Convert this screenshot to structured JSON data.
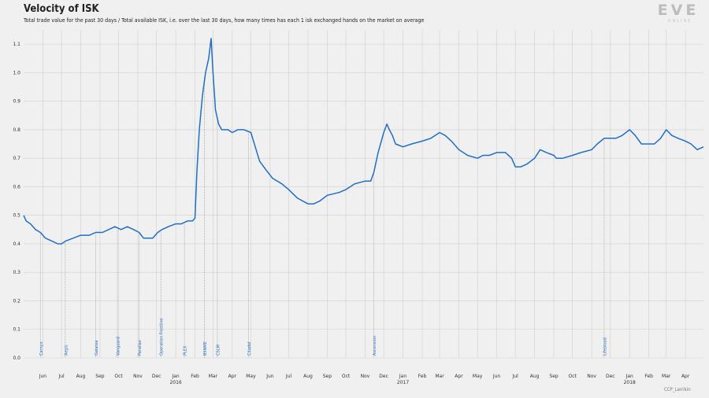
{
  "chart_data": {
    "type": "line",
    "title": "Velocity of ISK",
    "subtitle": "Total trade value for the past 30 days / Total available ISK, i.e. over the last 30 days, how many times has each 1 isk exchanged hands on the market on average",
    "xlabel": "",
    "ylabel": "",
    "ylim": [
      0,
      1.15
    ],
    "y_ticks": [
      "0.0",
      "0.1",
      "0.2",
      "0.3",
      "0.4",
      "0.5",
      "0.6",
      "0.7",
      "0.8",
      "0.9",
      "1.0",
      "1.1"
    ],
    "x_range": [
      "2015-05-01",
      "2018-04-30"
    ],
    "x_ticks": [
      {
        "date": "2015-06-01",
        "label": "Jun"
      },
      {
        "date": "2015-07-01",
        "label": "Jul"
      },
      {
        "date": "2015-08-01",
        "label": "Aug"
      },
      {
        "date": "2015-09-01",
        "label": "Sep"
      },
      {
        "date": "2015-10-01",
        "label": "Oct"
      },
      {
        "date": "2015-11-01",
        "label": "Nov"
      },
      {
        "date": "2015-12-01",
        "label": "Dec"
      },
      {
        "date": "2016-01-01",
        "label": "Jan",
        "year": "2016"
      },
      {
        "date": "2016-02-01",
        "label": "Feb"
      },
      {
        "date": "2016-03-01",
        "label": "Mar"
      },
      {
        "date": "2016-04-01",
        "label": "Apr"
      },
      {
        "date": "2016-05-01",
        "label": "May"
      },
      {
        "date": "2016-06-01",
        "label": "Jun"
      },
      {
        "date": "2016-07-01",
        "label": "Jul"
      },
      {
        "date": "2016-08-01",
        "label": "Aug"
      },
      {
        "date": "2016-09-01",
        "label": "Sep"
      },
      {
        "date": "2016-10-01",
        "label": "Oct"
      },
      {
        "date": "2016-11-01",
        "label": "Nov"
      },
      {
        "date": "2016-12-01",
        "label": "Dec"
      },
      {
        "date": "2017-01-01",
        "label": "Jan",
        "year": "2017"
      },
      {
        "date": "2017-02-01",
        "label": "Feb"
      },
      {
        "date": "2017-03-01",
        "label": "Mar"
      },
      {
        "date": "2017-04-01",
        "label": "Apr"
      },
      {
        "date": "2017-05-01",
        "label": "May"
      },
      {
        "date": "2017-06-01",
        "label": "Jun"
      },
      {
        "date": "2017-07-01",
        "label": "Jul"
      },
      {
        "date": "2017-08-01",
        "label": "Aug"
      },
      {
        "date": "2017-09-01",
        "label": "Sep"
      },
      {
        "date": "2017-10-01",
        "label": "Oct"
      },
      {
        "date": "2017-11-01",
        "label": "Nov"
      },
      {
        "date": "2017-12-01",
        "label": "Dec"
      },
      {
        "date": "2018-01-01",
        "label": "Jan",
        "year": "2018"
      },
      {
        "date": "2018-02-01",
        "label": "Feb"
      },
      {
        "date": "2018-03-01",
        "label": "Mar"
      },
      {
        "date": "2018-04-01",
        "label": "Apr"
      }
    ],
    "grid": true,
    "legend": "none",
    "colors": {
      "line": "#1f6fc4",
      "annotation": "#2a6fc0",
      "grid": "#cfcfcf",
      "marker_line": "#999999"
    },
    "annotations": [
      {
        "date": "2015-05-28",
        "label": "Carnyx"
      },
      {
        "date": "2015-07-07",
        "label": "Aegis"
      },
      {
        "date": "2015-08-25",
        "label": "Galatea"
      },
      {
        "date": "2015-09-29",
        "label": "Vanguard"
      },
      {
        "date": "2015-11-03",
        "label": "Parallax"
      },
      {
        "date": "2015-12-08",
        "label": "Operation Frostline"
      },
      {
        "date": "2016-01-15",
        "label": "PLEX"
      },
      {
        "date": "2016-02-16",
        "label": "BSNME"
      },
      {
        "date": "2016-03-08",
        "label": "CSLM"
      },
      {
        "date": "2016-04-27",
        "label": "Citadel"
      },
      {
        "date": "2016-11-15",
        "label": "Ascension"
      },
      {
        "date": "2017-11-21",
        "label": "Lifeblood"
      }
    ],
    "series": [
      {
        "values": [
          [
            "2015-05-01",
            0.5
          ],
          [
            "2015-05-05",
            0.48
          ],
          [
            "2015-05-12",
            0.47
          ],
          [
            "2015-05-20",
            0.45
          ],
          [
            "2015-05-28",
            0.44
          ],
          [
            "2015-06-05",
            0.42
          ],
          [
            "2015-06-15",
            0.41
          ],
          [
            "2015-06-25",
            0.4
          ],
          [
            "2015-07-01",
            0.4
          ],
          [
            "2015-07-08",
            0.41
          ],
          [
            "2015-07-20",
            0.42
          ],
          [
            "2015-08-01",
            0.43
          ],
          [
            "2015-08-15",
            0.43
          ],
          [
            "2015-08-25",
            0.44
          ],
          [
            "2015-09-05",
            0.44
          ],
          [
            "2015-09-15",
            0.45
          ],
          [
            "2015-09-25",
            0.46
          ],
          [
            "2015-10-05",
            0.45
          ],
          [
            "2015-10-15",
            0.46
          ],
          [
            "2015-10-25",
            0.45
          ],
          [
            "2015-11-03",
            0.44
          ],
          [
            "2015-11-10",
            0.42
          ],
          [
            "2015-11-20",
            0.42
          ],
          [
            "2015-11-25",
            0.42
          ],
          [
            "2015-12-03",
            0.44
          ],
          [
            "2015-12-10",
            0.45
          ],
          [
            "2015-12-20",
            0.46
          ],
          [
            "2016-01-01",
            0.47
          ],
          [
            "2016-01-10",
            0.47
          ],
          [
            "2016-01-20",
            0.48
          ],
          [
            "2016-01-28",
            0.48
          ],
          [
            "2016-02-01",
            0.49
          ],
          [
            "2016-02-04",
            0.65
          ],
          [
            "2016-02-08",
            0.8
          ],
          [
            "2016-02-13",
            0.92
          ],
          [
            "2016-02-18",
            1.0
          ],
          [
            "2016-02-23",
            1.05
          ],
          [
            "2016-02-27",
            1.12
          ],
          [
            "2016-03-01",
            1.0
          ],
          [
            "2016-03-05",
            0.87
          ],
          [
            "2016-03-10",
            0.82
          ],
          [
            "2016-03-15",
            0.8
          ],
          [
            "2016-03-25",
            0.8
          ],
          [
            "2016-04-01",
            0.79
          ],
          [
            "2016-04-10",
            0.8
          ],
          [
            "2016-04-20",
            0.8
          ],
          [
            "2016-05-01",
            0.79
          ],
          [
            "2016-05-08",
            0.74
          ],
          [
            "2016-05-15",
            0.69
          ],
          [
            "2016-05-25",
            0.66
          ],
          [
            "2016-06-05",
            0.63
          ],
          [
            "2016-06-20",
            0.61
          ],
          [
            "2016-07-01",
            0.59
          ],
          [
            "2016-07-15",
            0.56
          ],
          [
            "2016-08-01",
            0.54
          ],
          [
            "2016-08-10",
            0.54
          ],
          [
            "2016-08-20",
            0.55
          ],
          [
            "2016-09-01",
            0.57
          ],
          [
            "2016-09-20",
            0.58
          ],
          [
            "2016-10-01",
            0.59
          ],
          [
            "2016-10-15",
            0.61
          ],
          [
            "2016-11-01",
            0.62
          ],
          [
            "2016-11-10",
            0.62
          ],
          [
            "2016-11-15",
            0.65
          ],
          [
            "2016-11-22",
            0.72
          ],
          [
            "2016-12-01",
            0.79
          ],
          [
            "2016-12-06",
            0.82
          ],
          [
            "2016-12-10",
            0.8
          ],
          [
            "2016-12-15",
            0.78
          ],
          [
            "2016-12-20",
            0.75
          ],
          [
            "2017-01-01",
            0.74
          ],
          [
            "2017-01-15",
            0.75
          ],
          [
            "2017-02-01",
            0.76
          ],
          [
            "2017-02-15",
            0.77
          ],
          [
            "2017-03-01",
            0.79
          ],
          [
            "2017-03-10",
            0.78
          ],
          [
            "2017-03-20",
            0.76
          ],
          [
            "2017-04-01",
            0.73
          ],
          [
            "2017-04-15",
            0.71
          ],
          [
            "2017-05-01",
            0.7
          ],
          [
            "2017-05-10",
            0.71
          ],
          [
            "2017-05-20",
            0.71
          ],
          [
            "2017-06-01",
            0.72
          ],
          [
            "2017-06-15",
            0.72
          ],
          [
            "2017-06-25",
            0.7
          ],
          [
            "2017-07-01",
            0.67
          ],
          [
            "2017-07-10",
            0.67
          ],
          [
            "2017-07-20",
            0.68
          ],
          [
            "2017-08-01",
            0.7
          ],
          [
            "2017-08-10",
            0.73
          ],
          [
            "2017-08-20",
            0.72
          ],
          [
            "2017-09-01",
            0.71
          ],
          [
            "2017-09-05",
            0.7
          ],
          [
            "2017-09-15",
            0.7
          ],
          [
            "2017-10-01",
            0.71
          ],
          [
            "2017-10-15",
            0.72
          ],
          [
            "2017-11-01",
            0.73
          ],
          [
            "2017-11-10",
            0.75
          ],
          [
            "2017-11-21",
            0.77
          ],
          [
            "2017-12-01",
            0.77
          ],
          [
            "2017-12-10",
            0.77
          ],
          [
            "2017-12-20",
            0.78
          ],
          [
            "2018-01-01",
            0.8
          ],
          [
            "2018-01-10",
            0.78
          ],
          [
            "2018-01-20",
            0.75
          ],
          [
            "2018-02-01",
            0.75
          ],
          [
            "2018-02-10",
            0.75
          ],
          [
            "2018-02-20",
            0.77
          ],
          [
            "2018-03-01",
            0.8
          ],
          [
            "2018-03-10",
            0.78
          ],
          [
            "2018-03-20",
            0.77
          ],
          [
            "2018-04-01",
            0.76
          ],
          [
            "2018-04-10",
            0.75
          ],
          [
            "2018-04-20",
            0.73
          ],
          [
            "2018-04-30",
            0.74
          ]
        ]
      }
    ]
  },
  "branding": {
    "logo_text": "EVE",
    "logo_subtext": "ONLINE",
    "credit": "CCP_Larrikin"
  }
}
